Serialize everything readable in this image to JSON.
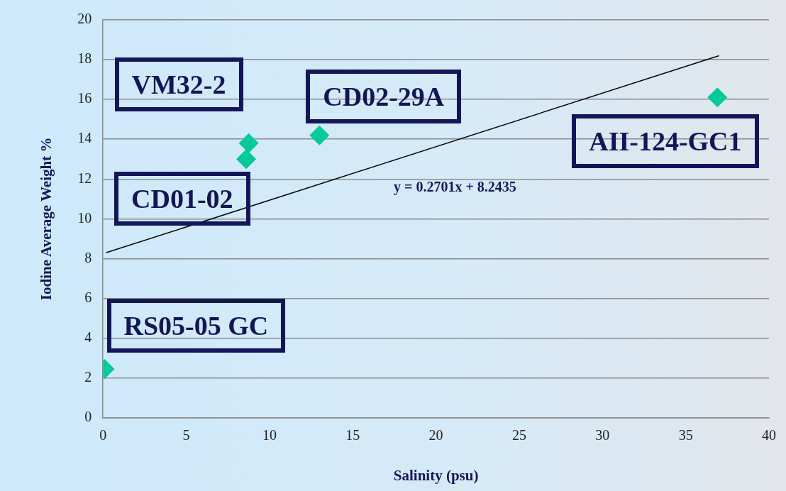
{
  "chart_data": {
    "type": "scatter",
    "xlabel": "Salinity (psu)",
    "ylabel": "Iodine Average Weight %",
    "xlim": [
      0,
      40
    ],
    "xticks": [
      0,
      5,
      10,
      15,
      20,
      25,
      30,
      35,
      40
    ],
    "ylim": [
      0,
      20
    ],
    "yticks": [
      0,
      2,
      4,
      6,
      8,
      10,
      12,
      14,
      16,
      18,
      20
    ],
    "grid": "y",
    "legend": false,
    "series": [
      {
        "marker": "diamond",
        "color": "#00cc99",
        "x": [
          0.1,
          8.75,
          8.6,
          13.0,
          36.9
        ],
        "values": [
          2.45,
          13.8,
          13.0,
          14.2,
          16.1
        ]
      },
      {
        "type": "line",
        "color": "#000000",
        "x": [
          0.2,
          37.0
        ],
        "values": [
          8.3,
          18.2
        ]
      }
    ],
    "annotations": [
      {
        "text": "RS05-05 GC",
        "x": 0.1,
        "y": 2.45
      },
      {
        "text": "VM32-2",
        "x": 8.75,
        "y": 13.8
      },
      {
        "text": "CD01-02",
        "x": 8.6,
        "y": 13.0
      },
      {
        "text": "CD02-29A",
        "x": 13.0,
        "y": 14.2
      },
      {
        "text": "AII-124-GC1",
        "x": 36.9,
        "y": 16.1
      },
      "y = 0.2701x + 8.2435"
    ]
  }
}
